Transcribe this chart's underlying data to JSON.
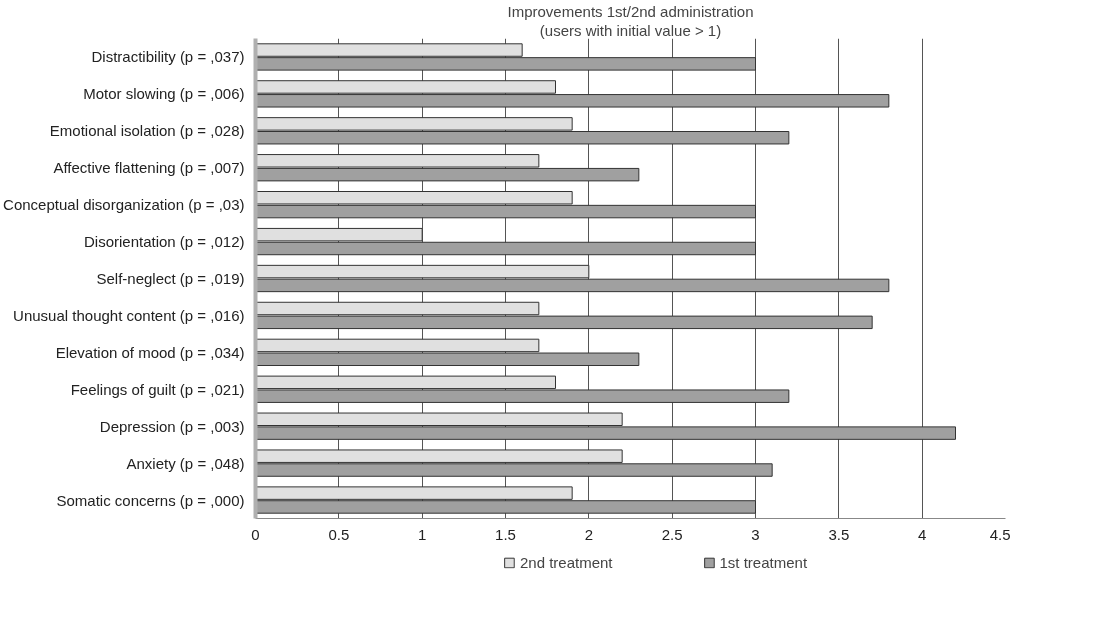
{
  "chart_data": {
    "type": "bar",
    "orientation": "horizontal",
    "title": "Improvements 1st/2nd administration",
    "subtitle": "(users with initial value > 1)",
    "categories": [
      "Distractibility (p = ,037)",
      "Motor slowing (p = ,006)",
      "Emotional isolation (p = ,028)",
      "Affective flattening (p = ,007)",
      "Conceptual disorganization (p = ,03)",
      "Disorientation (p = ,012)",
      "Self-neglect (p = ,019)",
      "Unusual thought content (p = ,016)",
      "Elevation of mood (p = ,034)",
      "Feelings of guilt (p = ,021)",
      "Depression (p = ,003)",
      "Anxiety (p = ,048)",
      "Somatic concerns (p = ,000)"
    ],
    "series": [
      {
        "name": "2nd treatment",
        "color": "#e0e0e0",
        "values": [
          1.6,
          1.8,
          1.9,
          1.7,
          1.9,
          1.0,
          2.0,
          1.7,
          1.7,
          1.8,
          2.2,
          2.2,
          1.9
        ]
      },
      {
        "name": "1st treatment",
        "color": "#a0a0a0",
        "values": [
          3.0,
          3.8,
          3.2,
          2.3,
          3.0,
          3.0,
          3.8,
          3.7,
          2.3,
          3.2,
          4.2,
          3.1,
          3.0
        ]
      }
    ],
    "xlim": [
      0,
      4.5
    ],
    "xticks": [
      0,
      0.5,
      1,
      1.5,
      2,
      2.5,
      3,
      3.5,
      4,
      4.5
    ],
    "grid": "x",
    "legend": "bottom"
  }
}
